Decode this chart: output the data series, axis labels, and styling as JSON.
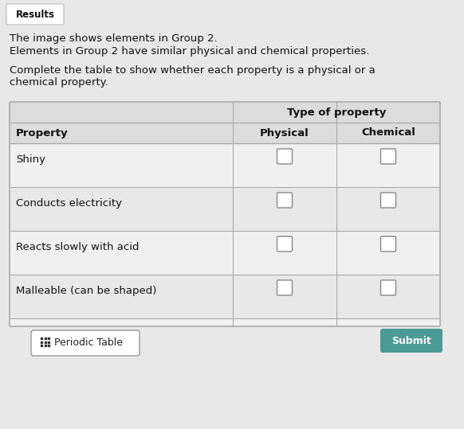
{
  "bg_color": "#e8e8e8",
  "results_label": "Results",
  "line1": "The image shows elements in Group 2.",
  "line2": "Elements in Group 2 have similar physical and chemical properties.",
  "line3": "Complete the table to show whether each property is a physical or a",
  "line4": "chemical property.",
  "table_header_merged": "Type of property",
  "col1_header": "Physical",
  "col2_header": "Chemical",
  "row_header": "Property",
  "rows": [
    "Shiny",
    "Conducts electricity",
    "Reacts slowly with acid",
    "Malleable (can be shaped)"
  ],
  "submit_label": "Submit",
  "periodic_table_label": "Periodic Table",
  "table_border": "#aaaaaa",
  "header_bg": "#dcdcdc",
  "row_bg_even": "#f0f0f0",
  "row_bg_odd": "#e8e8e8",
  "submit_bg": "#4a9a96",
  "submit_text": "#ffffff",
  "checkbox_color": "#888888",
  "checkbox_bg": "#ffffff",
  "results_border": "#bbbbbb",
  "results_bg": "#ffffff"
}
